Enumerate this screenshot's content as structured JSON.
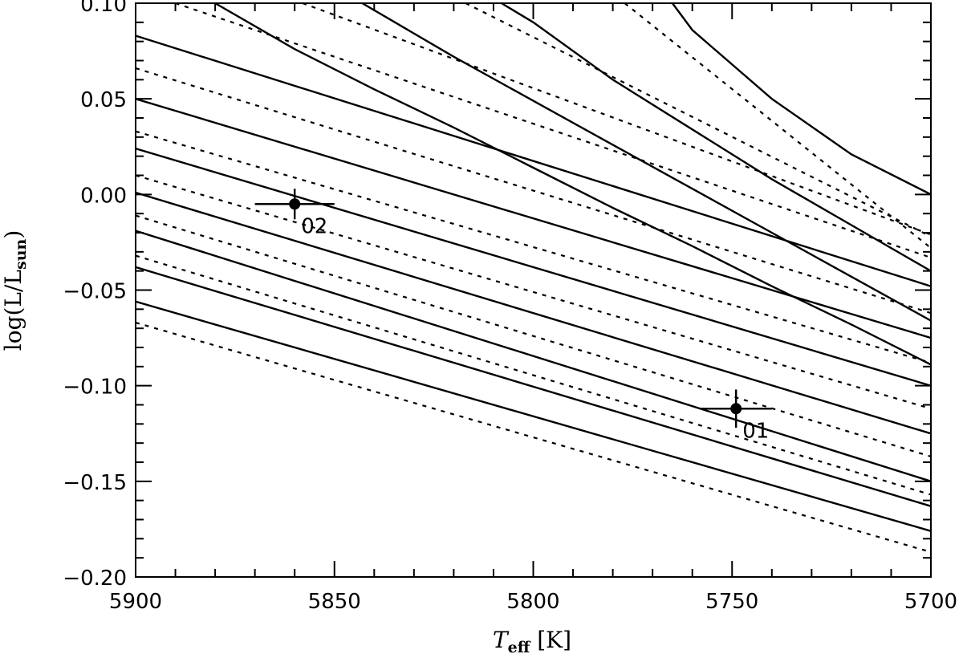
{
  "chart_data": {
    "type": "line",
    "title": "",
    "xlabel": {
      "main": "T",
      "sub": "eff",
      "unit": " [K]"
    },
    "ylabel": {
      "main": "log(L/L",
      "sub": "sun",
      "close": ")"
    },
    "xlim": [
      5900,
      5700
    ],
    "ylim": [
      -0.2,
      0.1
    ],
    "x_ticks": [
      5900,
      5850,
      5800,
      5750,
      5700
    ],
    "x_tick_labels": [
      "5900",
      "5850",
      "5800",
      "5750",
      "5700"
    ],
    "y_ticks": [
      0.1,
      0.05,
      0.0,
      -0.05,
      -0.1,
      -0.15,
      -0.2
    ],
    "y_tick_labels": [
      "0.10",
      "0.05",
      "0.00",
      "−0.05",
      "−0.10",
      "−0.15",
      "−0.20"
    ],
    "grid": false,
    "series": [
      {
        "style": "solid",
        "x": [
          5900,
          5700
        ],
        "y": [
          -0.056,
          -0.176
        ]
      },
      {
        "style": "solid",
        "x": [
          5900,
          5700
        ],
        "y": [
          -0.038,
          -0.163
        ]
      },
      {
        "style": "solid",
        "x": [
          5900,
          5700
        ],
        "y": [
          -0.019,
          -0.15
        ]
      },
      {
        "style": "solid",
        "x": [
          5900,
          5700
        ],
        "y": [
          0.001,
          -0.125
        ]
      },
      {
        "style": "solid",
        "x": [
          5900,
          5700
        ],
        "y": [
          0.024,
          -0.1
        ]
      },
      {
        "style": "solid",
        "x": [
          5900,
          5700
        ],
        "y": [
          0.05,
          -0.075
        ]
      },
      {
        "style": "solid",
        "x": [
          5900,
          5700
        ],
        "y": [
          0.083,
          -0.048
        ]
      },
      {
        "style": "solid",
        "x": [
          5880,
          5860,
          5840,
          5820,
          5800,
          5780,
          5760,
          5740,
          5720,
          5700
        ],
        "y": [
          0.1,
          0.076,
          0.055,
          0.035,
          0.014,
          -0.007,
          -0.027,
          -0.048,
          -0.068,
          -0.089
        ]
      },
      {
        "style": "solid",
        "x": [
          5843,
          5820,
          5800,
          5780,
          5760,
          5740,
          5720,
          5700
        ],
        "y": [
          0.1,
          0.072,
          0.049,
          0.026,
          0.003,
          -0.02,
          -0.043,
          -0.066
        ]
      },
      {
        "style": "solid",
        "x": [
          5808,
          5800,
          5780,
          5760,
          5740,
          5720,
          5700
        ],
        "y": [
          0.1,
          0.09,
          0.06,
          0.034,
          0.008,
          -0.016,
          -0.04
        ]
      },
      {
        "style": "solid",
        "x": [
          5765,
          5760,
          5740,
          5720,
          5700
        ],
        "y": [
          0.1,
          0.086,
          0.05,
          0.021,
          0.0
        ]
      },
      {
        "style": "dotted",
        "x": [
          5900,
          5700
        ],
        "y": [
          -0.067,
          -0.187
        ]
      },
      {
        "style": "dotted",
        "x": [
          5900,
          5700
        ],
        "y": [
          -0.032,
          -0.157
        ]
      },
      {
        "style": "dotted",
        "x": [
          5900,
          5700
        ],
        "y": [
          -0.011,
          -0.137
        ]
      },
      {
        "style": "dotted",
        "x": [
          5900,
          5700
        ],
        "y": [
          0.01,
          -0.112
        ]
      },
      {
        "style": "dotted",
        "x": [
          5900,
          5700
        ],
        "y": [
          0.033,
          -0.088
        ]
      },
      {
        "style": "dotted",
        "x": [
          5900,
          5700
        ],
        "y": [
          0.066,
          -0.062
        ]
      },
      {
        "style": "dotted",
        "x": [
          5890,
          5700
        ],
        "y": [
          0.1,
          -0.033
        ]
      },
      {
        "style": "dotted",
        "x": [
          5858,
          5700
        ],
        "y": [
          0.1,
          -0.021
        ]
      },
      {
        "style": "dotted",
        "x": [
          5817,
          5700
        ],
        "y": [
          0.1,
          -0.022
        ]
      },
      {
        "style": "dotted",
        "x": [
          5777,
          5700
        ],
        "y": [
          0.1,
          -0.028
        ]
      }
    ],
    "points": [
      {
        "label": "02",
        "x": 5860,
        "y": -0.005,
        "xerr": 10,
        "yerr": 0.008
      },
      {
        "label": "01",
        "x": 5749,
        "y": -0.112,
        "xerr": 9,
        "yerr": 0.01
      }
    ]
  }
}
